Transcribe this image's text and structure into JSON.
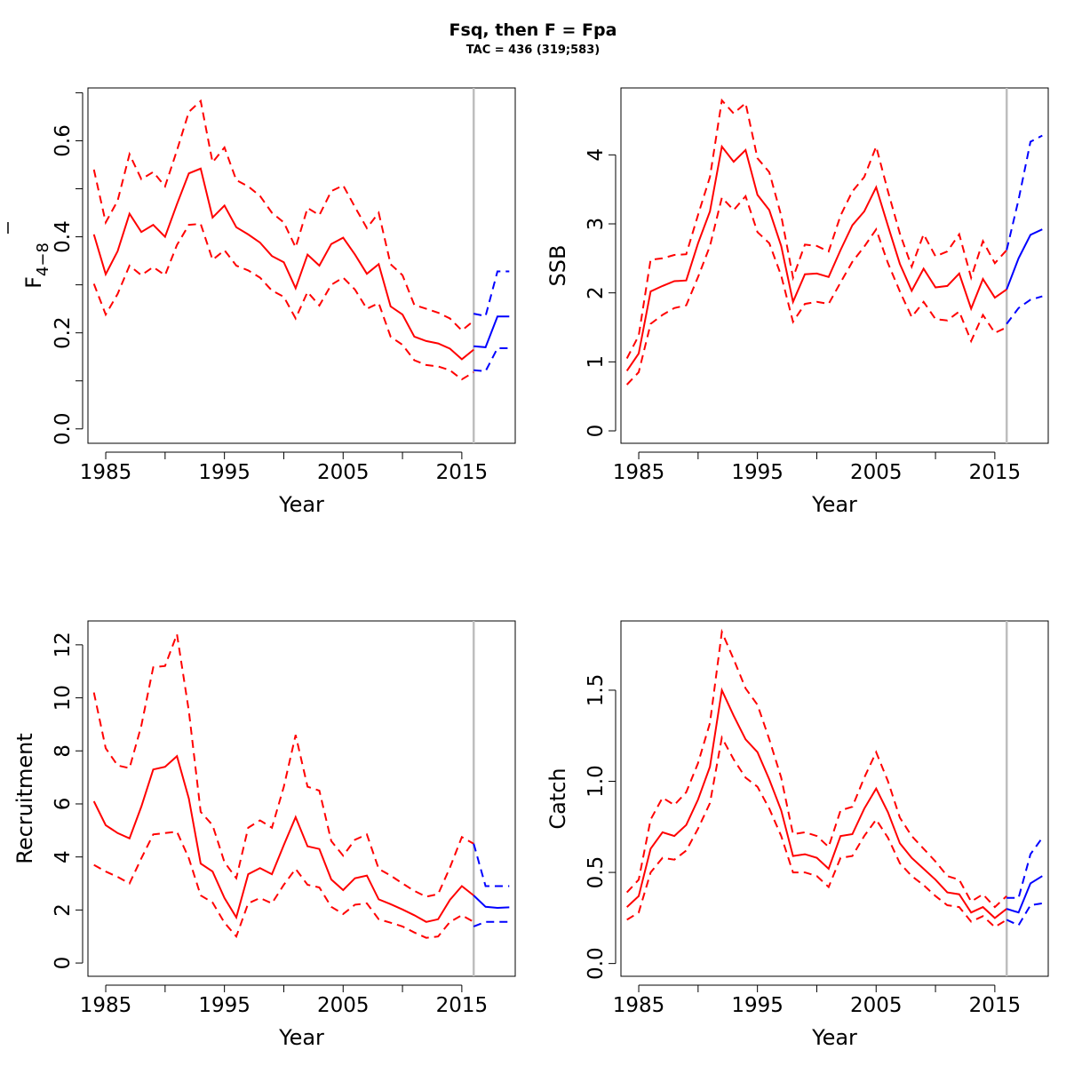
{
  "figure": {
    "title": "Fsq, then F = Fpa",
    "subtitle": "TAC = 436 (319;583)"
  },
  "colors": {
    "historical": "#ff0000",
    "projection": "#0000ff",
    "divider": "#bebebe",
    "axes": "#000000"
  },
  "chart_data": [
    {
      "type": "line",
      "panel": "top-left",
      "ylabel_main": "F",
      "ylabel_sub": "4−8",
      "xlabel": "Year",
      "xlim": [
        1983.5,
        2019.5
      ],
      "ylim": [
        -0.03,
        0.71
      ],
      "xticks": [
        1985,
        1990,
        1995,
        2000,
        2005,
        2010,
        2015
      ],
      "xtick_labels": [
        "1985",
        "",
        "1995",
        "",
        "2005",
        "",
        "2015"
      ],
      "yticks": [
        0.0,
        0.1,
        0.2,
        0.3,
        0.4,
        0.5,
        0.6,
        0.7
      ],
      "ytick_labels": [
        "0.0",
        "",
        "0.2",
        "",
        "0.4",
        "",
        "0.6",
        ""
      ],
      "divider_year": 2016,
      "historical": {
        "years": [
          1984,
          1985,
          1986,
          1987,
          1988,
          1989,
          1990,
          1991,
          1992,
          1993,
          1994,
          1995,
          1996,
          1997,
          1998,
          1999,
          2000,
          2001,
          2002,
          2003,
          2004,
          2005,
          2006,
          2007,
          2008,
          2009,
          2010,
          2011,
          2012,
          2013,
          2014,
          2015,
          2016
        ],
        "estimate": [
          0.405,
          0.322,
          0.37,
          0.448,
          0.41,
          0.425,
          0.4,
          0.468,
          0.532,
          0.542,
          0.44,
          0.465,
          0.42,
          0.405,
          0.388,
          0.36,
          0.347,
          0.293,
          0.363,
          0.34,
          0.385,
          0.398,
          0.363,
          0.323,
          0.343,
          0.255,
          0.238,
          0.192,
          0.183,
          0.178,
          0.167,
          0.145,
          0.165
        ],
        "lower": [
          0.302,
          0.238,
          0.281,
          0.34,
          0.32,
          0.337,
          0.32,
          0.383,
          0.425,
          0.427,
          0.352,
          0.372,
          0.34,
          0.33,
          0.315,
          0.288,
          0.275,
          0.23,
          0.285,
          0.257,
          0.3,
          0.315,
          0.29,
          0.25,
          0.262,
          0.192,
          0.175,
          0.143,
          0.133,
          0.13,
          0.122,
          0.103,
          0.118
        ],
        "upper": [
          0.54,
          0.43,
          0.475,
          0.572,
          0.52,
          0.535,
          0.505,
          0.58,
          0.66,
          0.683,
          0.555,
          0.586,
          0.518,
          0.505,
          0.485,
          0.45,
          0.43,
          0.378,
          0.46,
          0.445,
          0.495,
          0.507,
          0.462,
          0.418,
          0.45,
          0.343,
          0.32,
          0.258,
          0.25,
          0.242,
          0.23,
          0.205,
          0.225
        ]
      },
      "projection": {
        "years": [
          2016,
          2017,
          2018,
          2019
        ],
        "estimate": [
          0.172,
          0.17,
          0.234,
          0.234
        ],
        "lower": [
          0.122,
          0.12,
          0.168,
          0.168
        ],
        "upper": [
          0.24,
          0.235,
          0.328,
          0.328
        ]
      }
    },
    {
      "type": "line",
      "panel": "top-right",
      "ylabel": "SSB",
      "xlabel": "Year",
      "xlim": [
        1983.5,
        2019.5
      ],
      "ylim": [
        -0.18,
        4.97
      ],
      "xticks": [
        1985,
        1990,
        1995,
        2000,
        2005,
        2010,
        2015
      ],
      "xtick_labels": [
        "1985",
        "",
        "1995",
        "",
        "2005",
        "",
        "2015"
      ],
      "yticks": [
        0,
        1,
        2,
        3,
        4
      ],
      "ytick_labels": [
        "0",
        "1",
        "2",
        "3",
        "4"
      ],
      "divider_year": 2016,
      "historical": {
        "years": [
          1984,
          1985,
          1986,
          1987,
          1988,
          1989,
          1990,
          1991,
          1992,
          1993,
          1994,
          1995,
          1996,
          1997,
          1998,
          1999,
          2000,
          2001,
          2002,
          2003,
          2004,
          2005,
          2006,
          2007,
          2008,
          2009,
          2010,
          2011,
          2012,
          2013,
          2014,
          2015,
          2016
        ],
        "estimate": [
          0.87,
          1.12,
          2.02,
          2.1,
          2.17,
          2.18,
          2.72,
          3.18,
          4.12,
          3.9,
          4.07,
          3.42,
          3.2,
          2.68,
          1.87,
          2.27,
          2.28,
          2.23,
          2.62,
          2.98,
          3.18,
          3.53,
          2.97,
          2.42,
          2.03,
          2.35,
          2.08,
          2.1,
          2.28,
          1.77,
          2.2,
          1.93,
          2.05
        ],
        "lower": [
          0.67,
          0.85,
          1.55,
          1.68,
          1.78,
          1.82,
          2.23,
          2.68,
          3.38,
          3.2,
          3.4,
          2.88,
          2.72,
          2.25,
          1.58,
          1.84,
          1.87,
          1.84,
          2.15,
          2.45,
          2.67,
          2.92,
          2.43,
          2.02,
          1.65,
          1.87,
          1.62,
          1.6,
          1.73,
          1.3,
          1.68,
          1.42,
          1.5
        ],
        "upper": [
          1.05,
          1.38,
          2.48,
          2.5,
          2.55,
          2.56,
          3.13,
          3.68,
          4.79,
          4.6,
          4.75,
          3.95,
          3.75,
          3.12,
          2.22,
          2.7,
          2.68,
          2.6,
          3.12,
          3.47,
          3.68,
          4.12,
          3.47,
          2.86,
          2.38,
          2.85,
          2.53,
          2.6,
          2.85,
          2.22,
          2.75,
          2.43,
          2.62
        ]
      },
      "projection": {
        "years": [
          2016,
          2017,
          2018,
          2019
        ],
        "estimate": [
          2.05,
          2.5,
          2.84,
          2.92
        ],
        "lower": [
          1.55,
          1.78,
          1.9,
          1.95
        ],
        "upper": [
          2.62,
          3.35,
          4.19,
          4.28
        ]
      }
    },
    {
      "type": "line",
      "panel": "bottom-left",
      "ylabel": "Recruitment",
      "xlabel": "Year",
      "xlim": [
        1983.5,
        2019.5
      ],
      "ylim": [
        -0.5,
        12.9
      ],
      "xticks": [
        1985,
        1990,
        1995,
        2000,
        2005,
        2010,
        2015
      ],
      "xtick_labels": [
        "1985",
        "",
        "1995",
        "",
        "2005",
        "",
        "2015"
      ],
      "yticks": [
        0,
        2,
        4,
        6,
        8,
        10,
        12
      ],
      "ytick_labels": [
        "0",
        "2",
        "4",
        "6",
        "8",
        "10",
        "12"
      ],
      "divider_year": 2016,
      "historical": {
        "years": [
          1984,
          1985,
          1986,
          1987,
          1988,
          1989,
          1990,
          1991,
          1992,
          1993,
          1994,
          1995,
          1996,
          1997,
          1998,
          1999,
          2000,
          2001,
          2002,
          2003,
          2004,
          2005,
          2006,
          2007,
          2008,
          2009,
          2010,
          2011,
          2012,
          2013,
          2014,
          2015,
          2016
        ],
        "estimate": [
          6.1,
          5.2,
          4.9,
          4.7,
          5.9,
          7.3,
          7.4,
          7.8,
          6.2,
          3.75,
          3.45,
          2.45,
          1.72,
          3.35,
          3.58,
          3.35,
          4.45,
          5.5,
          4.4,
          4.3,
          3.15,
          2.75,
          3.2,
          3.3,
          2.4,
          2.22,
          2.02,
          1.8,
          1.55,
          1.65,
          2.38,
          2.9,
          2.55
        ],
        "lower": [
          3.7,
          3.45,
          3.25,
          3.0,
          3.95,
          4.85,
          4.9,
          4.95,
          3.95,
          2.55,
          2.28,
          1.52,
          1.0,
          2.25,
          2.45,
          2.25,
          2.95,
          3.55,
          2.95,
          2.85,
          2.12,
          1.85,
          2.2,
          2.25,
          1.65,
          1.52,
          1.38,
          1.15,
          0.95,
          1.0,
          1.55,
          1.8,
          1.55
        ],
        "upper": [
          10.2,
          8.1,
          7.45,
          7.35,
          8.95,
          11.15,
          11.2,
          12.4,
          9.5,
          5.7,
          5.2,
          3.8,
          3.2,
          5.1,
          5.38,
          5.1,
          6.65,
          8.6,
          6.65,
          6.5,
          4.6,
          4.05,
          4.65,
          4.85,
          3.55,
          3.3,
          3.0,
          2.72,
          2.5,
          2.6,
          3.6,
          4.75,
          4.5
        ]
      },
      "projection": {
        "years": [
          2016,
          2017,
          2018,
          2019
        ],
        "estimate": [
          2.55,
          2.12,
          2.08,
          2.1
        ],
        "lower": [
          1.38,
          1.55,
          1.55,
          1.55
        ],
        "upper": [
          4.5,
          2.9,
          2.9,
          2.9
        ]
      }
    },
    {
      "type": "line",
      "panel": "bottom-right",
      "ylabel": "Catch",
      "xlabel": "Year",
      "xlim": [
        1983.5,
        2019.5
      ],
      "ylim": [
        -0.07,
        1.88
      ],
      "xticks": [
        1985,
        1990,
        1995,
        2000,
        2005,
        2010,
        2015
      ],
      "xtick_labels": [
        "1985",
        "",
        "1995",
        "",
        "2005",
        "",
        "2015"
      ],
      "yticks": [
        0.0,
        0.5,
        1.0,
        1.5
      ],
      "ytick_labels": [
        "0.0",
        "0.5",
        "1.0",
        "1.5"
      ],
      "divider_year": 2016,
      "historical": {
        "years": [
          1984,
          1985,
          1986,
          1987,
          1988,
          1989,
          1990,
          1991,
          1992,
          1993,
          1994,
          1995,
          1996,
          1997,
          1998,
          1999,
          2000,
          2001,
          2002,
          2003,
          2004,
          2005,
          2006,
          2007,
          2008,
          2009,
          2010,
          2011,
          2012,
          2013,
          2014,
          2015,
          2016
        ],
        "estimate": [
          0.31,
          0.37,
          0.63,
          0.72,
          0.7,
          0.76,
          0.9,
          1.08,
          1.5,
          1.36,
          1.23,
          1.16,
          1.01,
          0.84,
          0.59,
          0.6,
          0.58,
          0.52,
          0.7,
          0.71,
          0.85,
          0.96,
          0.83,
          0.66,
          0.58,
          0.52,
          0.46,
          0.39,
          0.38,
          0.28,
          0.31,
          0.25,
          0.3
        ],
        "lower": [
          0.24,
          0.28,
          0.5,
          0.58,
          0.57,
          0.62,
          0.74,
          0.88,
          1.24,
          1.12,
          1.02,
          0.97,
          0.85,
          0.7,
          0.5,
          0.5,
          0.48,
          0.42,
          0.58,
          0.59,
          0.7,
          0.79,
          0.69,
          0.55,
          0.48,
          0.43,
          0.37,
          0.32,
          0.31,
          0.23,
          0.26,
          0.2,
          0.24
        ],
        "upper": [
          0.39,
          0.46,
          0.79,
          0.91,
          0.87,
          0.94,
          1.1,
          1.32,
          1.82,
          1.67,
          1.51,
          1.42,
          1.23,
          1.02,
          0.71,
          0.72,
          0.7,
          0.64,
          0.84,
          0.86,
          1.02,
          1.16,
          1.0,
          0.8,
          0.7,
          0.63,
          0.56,
          0.48,
          0.46,
          0.34,
          0.38,
          0.31,
          0.37
        ]
      },
      "projection": {
        "years": [
          2016,
          2017,
          2018,
          2019
        ],
        "estimate": [
          0.3,
          0.28,
          0.44,
          0.48
        ],
        "lower": [
          0.24,
          0.21,
          0.32,
          0.33
        ],
        "upper": [
          0.36,
          0.36,
          0.6,
          0.69
        ]
      }
    }
  ]
}
